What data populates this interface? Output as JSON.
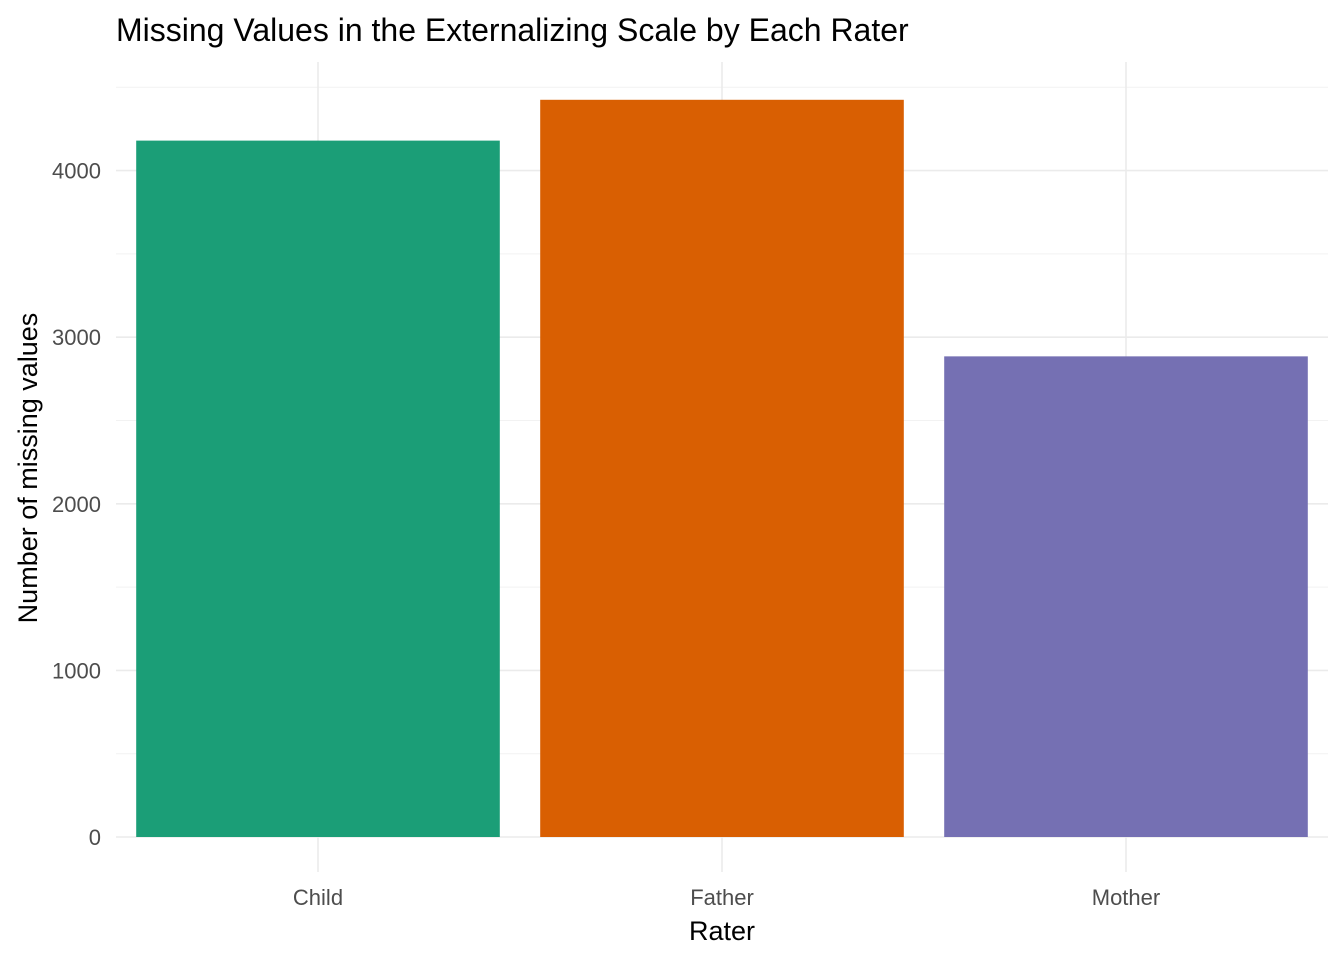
{
  "chart_data": {
    "type": "bar",
    "title": "Missing Values in the Externalizing Scale by Each Rater",
    "xlabel": "Rater",
    "ylabel": "Number of missing values",
    "categories": [
      "Child",
      "Father",
      "Mother"
    ],
    "values": [
      4180,
      4425,
      2885
    ],
    "colors": [
      "#1b9e77",
      "#d95f02",
      "#7570b3"
    ],
    "ylim": [
      0,
      4600
    ],
    "yticks": [
      0,
      1000,
      2000,
      3000,
      4000
    ],
    "grid": true,
    "legend": "none"
  }
}
